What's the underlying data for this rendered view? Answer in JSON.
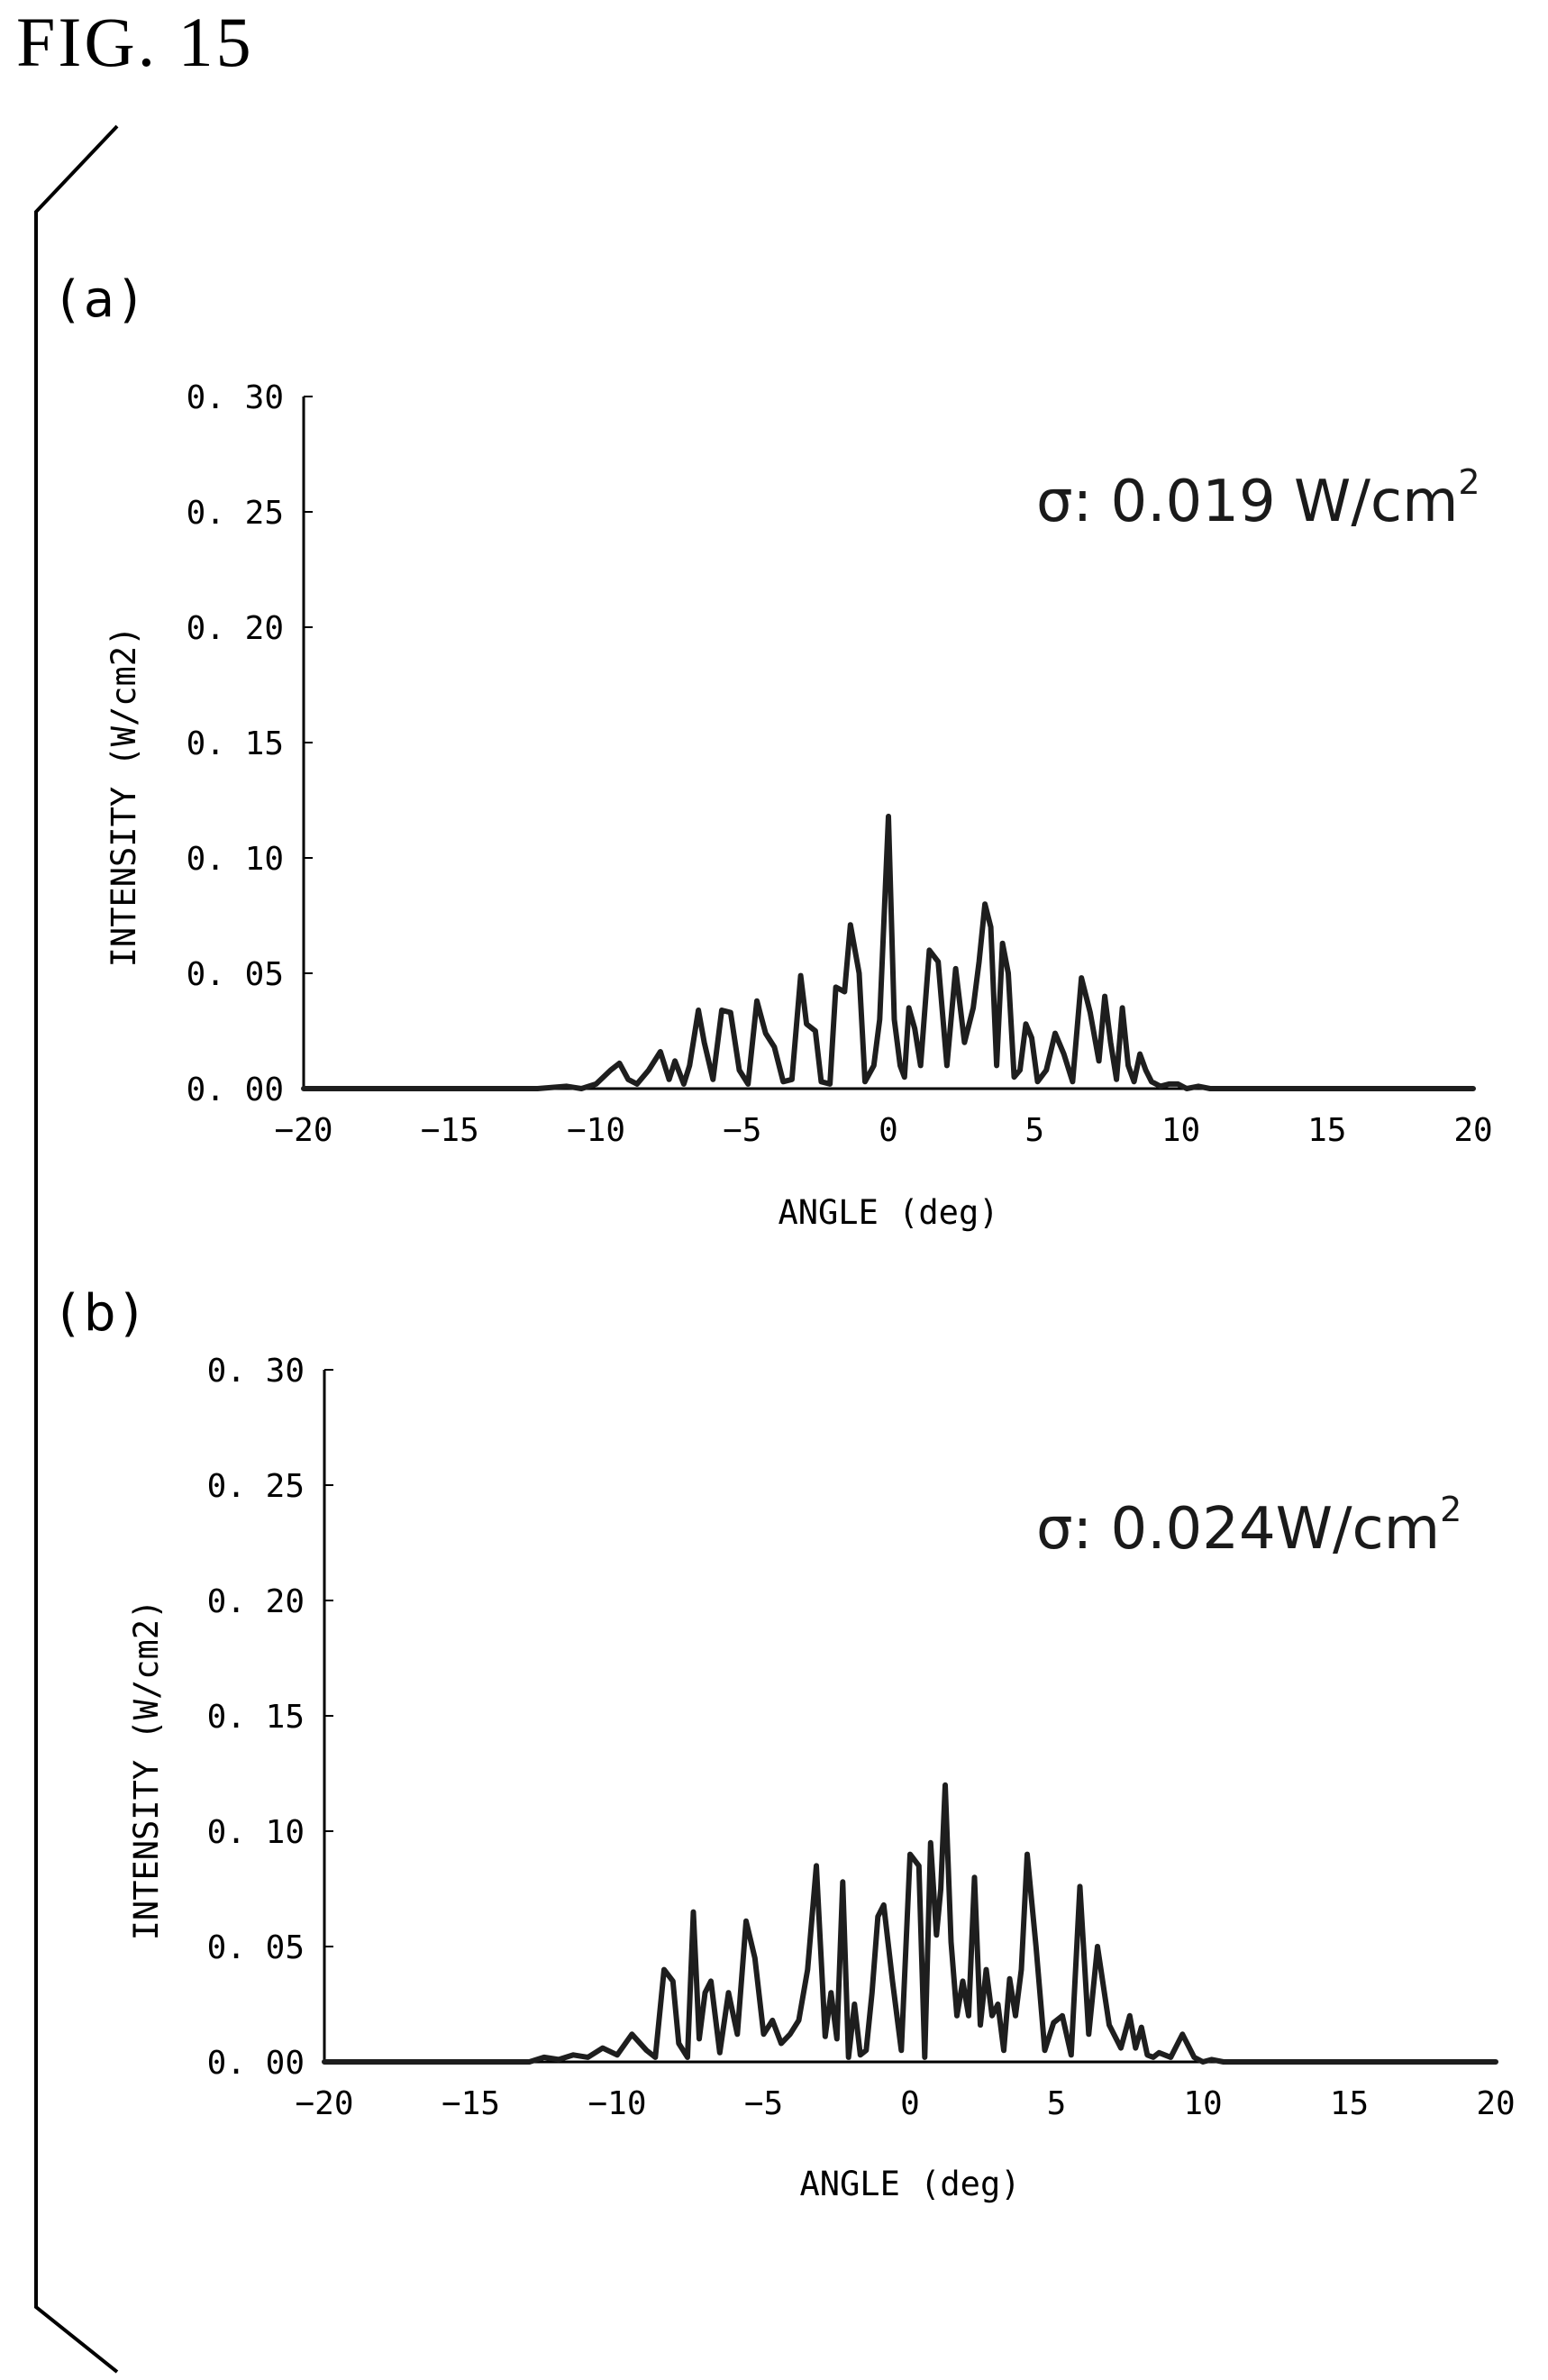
{
  "figure_title": "FIG. 15",
  "colors": {
    "line": "#1e1e1e",
    "axis": "#000000",
    "background": "#ffffff"
  },
  "panels": [
    {
      "label": "(a)"
    },
    {
      "label": "(b)"
    }
  ],
  "chart_data": [
    {
      "type": "line",
      "panel": "(a)",
      "title": "",
      "annotation": {
        "text": "σ: 0.019 W/cm",
        "superscript": "2"
      },
      "xlabel": "ANGLE (deg)",
      "ylabel": "INTENSITY (W/cm2)",
      "xlim": [
        -20,
        20
      ],
      "ylim": [
        0,
        0.3
      ],
      "x_ticks": [
        -20,
        -15,
        -10,
        -5,
        0,
        5,
        10,
        15,
        20
      ],
      "x_tick_labels": [
        "−20",
        "−15",
        "−10",
        "−5",
        "0",
        "5",
        "10",
        "15",
        "20"
      ],
      "y_ticks": [
        0,
        0.05,
        0.1,
        0.15,
        0.2,
        0.25,
        0.3
      ],
      "y_tick_labels": [
        "0. 00",
        "0. 05",
        "0. 10",
        "0. 15",
        "0. 20",
        "0. 25",
        "0. 30"
      ],
      "grid": false,
      "x": [
        -20,
        -12,
        -11,
        -10.5,
        -10,
        -9.5,
        -9.2,
        -8.9,
        -8.6,
        -8.2,
        -7.8,
        -7.5,
        -7.3,
        -7,
        -6.8,
        -6.5,
        -6.3,
        -6,
        -5.7,
        -5.4,
        -5.1,
        -4.8,
        -4.5,
        -4.2,
        -3.9,
        -3.6,
        -3.3,
        -3,
        -2.8,
        -2.5,
        -2.3,
        -2,
        -1.8,
        -1.5,
        -1.3,
        -1,
        -0.8,
        -0.5,
        -0.3,
        0,
        0.2,
        0.4,
        0.55,
        0.7,
        0.9,
        1.1,
        1.4,
        1.7,
        2,
        2.3,
        2.6,
        2.9,
        3.1,
        3.3,
        3.5,
        3.7,
        3.9,
        4.1,
        4.3,
        4.5,
        4.7,
        4.9,
        5.1,
        5.4,
        5.7,
        6,
        6.3,
        6.6,
        6.9,
        7.2,
        7.4,
        7.6,
        7.8,
        8,
        8.2,
        8.4,
        8.6,
        8.8,
        9,
        9.3,
        9.6,
        9.9,
        10.2,
        10.6,
        11,
        11.5,
        12,
        13,
        20
      ],
      "y": [
        0,
        0,
        0.001,
        0,
        0.002,
        0.008,
        0.011,
        0.004,
        0.002,
        0.008,
        0.016,
        0.004,
        0.012,
        0.002,
        0.01,
        0.034,
        0.02,
        0.004,
        0.034,
        0.033,
        0.008,
        0.002,
        0.038,
        0.024,
        0.018,
        0.003,
        0.004,
        0.049,
        0.028,
        0.025,
        0.003,
        0.002,
        0.044,
        0.042,
        0.071,
        0.05,
        0.003,
        0.01,
        0.03,
        0.118,
        0.03,
        0.01,
        0.005,
        0.035,
        0.026,
        0.01,
        0.06,
        0.055,
        0.01,
        0.052,
        0.02,
        0.035,
        0.055,
        0.08,
        0.07,
        0.01,
        0.063,
        0.05,
        0.005,
        0.008,
        0.028,
        0.022,
        0.003,
        0.008,
        0.024,
        0.015,
        0.003,
        0.048,
        0.033,
        0.012,
        0.04,
        0.02,
        0.004,
        0.035,
        0.01,
        0.003,
        0.015,
        0.008,
        0.003,
        0.001,
        0.002,
        0.002,
        0,
        0.001,
        0,
        0,
        0,
        0,
        0
      ]
    },
    {
      "type": "line",
      "panel": "(b)",
      "title": "",
      "annotation": {
        "text": "σ: 0.024W/cm",
        "superscript": "2"
      },
      "xlabel": "ANGLE (deg)",
      "ylabel": "INTENSITY (W/cm2)",
      "xlim": [
        -20,
        20
      ],
      "ylim": [
        0,
        0.3
      ],
      "x_ticks": [
        -20,
        -15,
        -10,
        -5,
        0,
        5,
        10,
        15,
        20
      ],
      "x_tick_labels": [
        "−20",
        "−15",
        "−10",
        "−5",
        "0",
        "5",
        "10",
        "15",
        "20"
      ],
      "y_ticks": [
        0,
        0.05,
        0.1,
        0.15,
        0.2,
        0.25,
        0.3
      ],
      "y_tick_labels": [
        "0. 00",
        "0. 05",
        "0. 10",
        "0. 15",
        "0. 20",
        "0. 25",
        "0. 30"
      ],
      "grid": false,
      "x": [
        -20,
        -13,
        -12.5,
        -12,
        -11.5,
        -11,
        -10.5,
        -10,
        -9.5,
        -9,
        -8.7,
        -8.4,
        -8.1,
        -7.9,
        -7.6,
        -7.4,
        -7.2,
        -7,
        -6.8,
        -6.5,
        -6.2,
        -5.9,
        -5.6,
        -5.3,
        -5,
        -4.7,
        -4.4,
        -4.1,
        -3.8,
        -3.5,
        -3.2,
        -2.9,
        -2.7,
        -2.5,
        -2.3,
        -2.1,
        -1.9,
        -1.7,
        -1.5,
        -1.3,
        -1.1,
        -0.9,
        -0.6,
        -0.3,
        0,
        0.3,
        0.5,
        0.7,
        0.9,
        1.05,
        1.2,
        1.4,
        1.6,
        1.8,
        2,
        2.2,
        2.4,
        2.6,
        2.8,
        3,
        3.2,
        3.4,
        3.6,
        3.8,
        4,
        4.3,
        4.6,
        4.9,
        5.2,
        5.5,
        5.8,
        6.1,
        6.4,
        6.8,
        7.2,
        7.5,
        7.7,
        7.9,
        8.1,
        8.3,
        8.5,
        8.9,
        9.3,
        9.7,
        10,
        10.3,
        10.7,
        11.2,
        11.7,
        12.2,
        12.6,
        13,
        14,
        20
      ],
      "y": [
        0,
        0,
        0.002,
        0.001,
        0.003,
        0.002,
        0.006,
        0.003,
        0.012,
        0.005,
        0.002,
        0.04,
        0.035,
        0.008,
        0.002,
        0.065,
        0.01,
        0.03,
        0.035,
        0.004,
        0.03,
        0.012,
        0.061,
        0.045,
        0.012,
        0.018,
        0.008,
        0.012,
        0.018,
        0.04,
        0.085,
        0.011,
        0.03,
        0.01,
        0.078,
        0.002,
        0.025,
        0.003,
        0.005,
        0.03,
        0.063,
        0.068,
        0.035,
        0.005,
        0.09,
        0.085,
        0.002,
        0.095,
        0.055,
        0.075,
        0.12,
        0.052,
        0.02,
        0.035,
        0.02,
        0.08,
        0.016,
        0.04,
        0.02,
        0.025,
        0.005,
        0.036,
        0.02,
        0.04,
        0.09,
        0.05,
        0.005,
        0.017,
        0.02,
        0.003,
        0.076,
        0.012,
        0.05,
        0.016,
        0.006,
        0.02,
        0.006,
        0.015,
        0.003,
        0.002,
        0.004,
        0.002,
        0.012,
        0.002,
        0,
        0.001,
        0,
        0,
        0,
        0,
        0,
        0,
        0,
        0
      ]
    }
  ]
}
